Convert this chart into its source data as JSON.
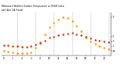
{
  "title_line1": "Milwaukee Weather Outdoor Temperature vs THSW Index",
  "title_line2": "per Hour (24 Hours)",
  "hours": [
    0,
    1,
    2,
    3,
    4,
    5,
    6,
    7,
    8,
    9,
    10,
    11,
    12,
    13,
    14,
    15,
    16,
    17,
    18,
    19,
    20,
    21,
    22,
    23
  ],
  "temp": [
    32,
    31,
    30,
    30,
    29,
    29,
    30,
    33,
    37,
    42,
    47,
    50,
    53,
    55,
    56,
    57,
    55,
    53,
    49,
    46,
    43,
    41,
    39,
    38
  ],
  "thsw": [
    20,
    18,
    17,
    16,
    15,
    15,
    17,
    26,
    38,
    55,
    68,
    78,
    85,
    90,
    88,
    82,
    72,
    60,
    48,
    40,
    35,
    30,
    27,
    24
  ],
  "temp_color": "#cc2200",
  "thsw_color": "#ff9900",
  "bg_color": "#ffffff",
  "grid_color": "#999999",
  "title_color": "#000000",
  "ylim": [
    10,
    100
  ],
  "xlim": [
    -0.5,
    23.5
  ],
  "vgrid_positions": [
    3,
    7,
    11,
    15,
    19,
    23
  ],
  "yticks": [
    90,
    50,
    40,
    30,
    20
  ],
  "ytick_labels": [
    "9",
    "5",
    "4",
    "3",
    "W"
  ],
  "xtick_positions": [
    0,
    2,
    4,
    6,
    8,
    10,
    12,
    14,
    16,
    18,
    20,
    22
  ],
  "xtick_labels": [
    "0",
    "2",
    "4",
    "6",
    "8",
    "10",
    "12",
    "14",
    "16",
    "18",
    "20",
    "22"
  ]
}
